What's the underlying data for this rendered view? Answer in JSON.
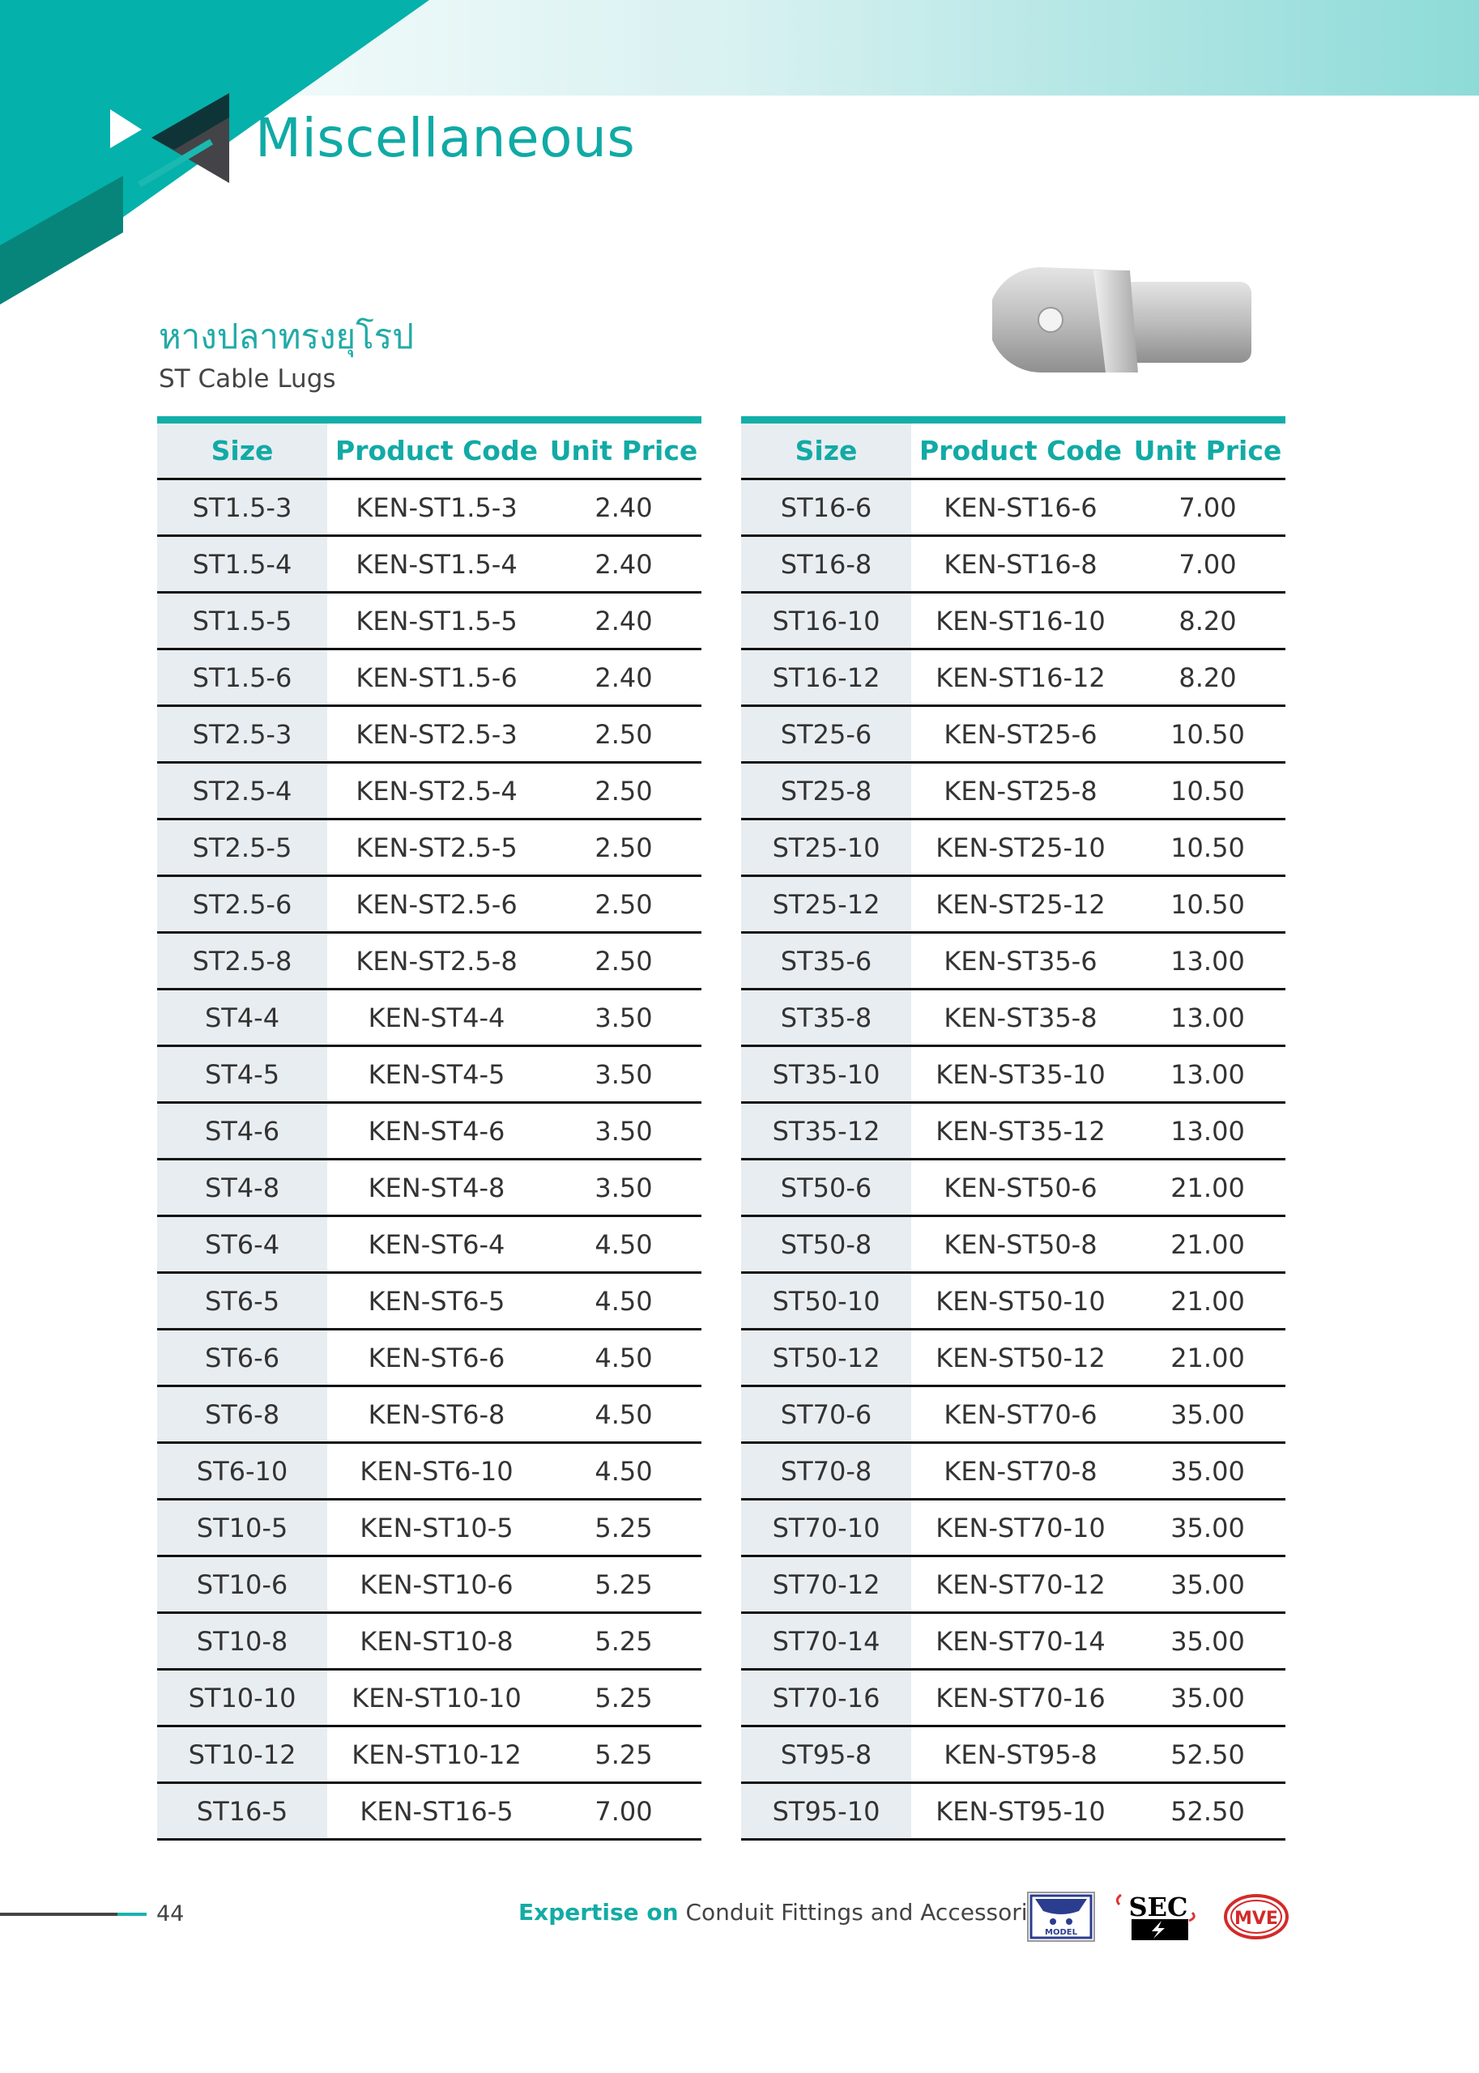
{
  "header": {
    "title": "Miscellaneous",
    "accent_color": "#12afa9"
  },
  "section": {
    "title_thai": "หางปลาทรงยุโรป",
    "title_en": "ST Cable Lugs"
  },
  "table_columns": [
    "Size",
    "Product Code",
    "Unit Price"
  ],
  "table_left": [
    [
      "ST1.5-3",
      "KEN-ST1.5-3",
      "2.40"
    ],
    [
      "ST1.5-4",
      "KEN-ST1.5-4",
      "2.40"
    ],
    [
      "ST1.5-5",
      "KEN-ST1.5-5",
      "2.40"
    ],
    [
      "ST1.5-6",
      "KEN-ST1.5-6",
      "2.40"
    ],
    [
      "ST2.5-3",
      "KEN-ST2.5-3",
      "2.50"
    ],
    [
      "ST2.5-4",
      "KEN-ST2.5-4",
      "2.50"
    ],
    [
      "ST2.5-5",
      "KEN-ST2.5-5",
      "2.50"
    ],
    [
      "ST2.5-6",
      "KEN-ST2.5-6",
      "2.50"
    ],
    [
      "ST2.5-8",
      "KEN-ST2.5-8",
      "2.50"
    ],
    [
      "ST4-4",
      "KEN-ST4-4",
      "3.50"
    ],
    [
      "ST4-5",
      "KEN-ST4-5",
      "3.50"
    ],
    [
      "ST4-6",
      "KEN-ST4-6",
      "3.50"
    ],
    [
      "ST4-8",
      "KEN-ST4-8",
      "3.50"
    ],
    [
      "ST6-4",
      "KEN-ST6-4",
      "4.50"
    ],
    [
      "ST6-5",
      "KEN-ST6-5",
      "4.50"
    ],
    [
      "ST6-6",
      "KEN-ST6-6",
      "4.50"
    ],
    [
      "ST6-8",
      "KEN-ST6-8",
      "4.50"
    ],
    [
      "ST6-10",
      "KEN-ST6-10",
      "4.50"
    ],
    [
      "ST10-5",
      "KEN-ST10-5",
      "5.25"
    ],
    [
      "ST10-6",
      "KEN-ST10-6",
      "5.25"
    ],
    [
      "ST10-8",
      "KEN-ST10-8",
      "5.25"
    ],
    [
      "ST10-10",
      "KEN-ST10-10",
      "5.25"
    ],
    [
      "ST10-12",
      "KEN-ST10-12",
      "5.25"
    ],
    [
      "ST16-5",
      "KEN-ST16-5",
      "7.00"
    ]
  ],
  "table_right": [
    [
      "ST16-6",
      "KEN-ST16-6",
      "7.00"
    ],
    [
      "ST16-8",
      "KEN-ST16-8",
      "7.00"
    ],
    [
      "ST16-10",
      "KEN-ST16-10",
      "8.20"
    ],
    [
      "ST16-12",
      "KEN-ST16-12",
      "8.20"
    ],
    [
      "ST25-6",
      "KEN-ST25-6",
      "10.50"
    ],
    [
      "ST25-8",
      "KEN-ST25-8",
      "10.50"
    ],
    [
      "ST25-10",
      "KEN-ST25-10",
      "10.50"
    ],
    [
      "ST25-12",
      "KEN-ST25-12",
      "10.50"
    ],
    [
      "ST35-6",
      "KEN-ST35-6",
      "13.00"
    ],
    [
      "ST35-8",
      "KEN-ST35-8",
      "13.00"
    ],
    [
      "ST35-10",
      "KEN-ST35-10",
      "13.00"
    ],
    [
      "ST35-12",
      "KEN-ST35-12",
      "13.00"
    ],
    [
      "ST50-6",
      "KEN-ST50-6",
      "21.00"
    ],
    [
      "ST50-8",
      "KEN-ST50-8",
      "21.00"
    ],
    [
      "ST50-10",
      "KEN-ST50-10",
      "21.00"
    ],
    [
      "ST50-12",
      "KEN-ST50-12",
      "21.00"
    ],
    [
      "ST70-6",
      "KEN-ST70-6",
      "35.00"
    ],
    [
      "ST70-8",
      "KEN-ST70-8",
      "35.00"
    ],
    [
      "ST70-10",
      "KEN-ST70-10",
      "35.00"
    ],
    [
      "ST70-12",
      "KEN-ST70-12",
      "35.00"
    ],
    [
      "ST70-14",
      "KEN-ST70-14",
      "35.00"
    ],
    [
      "ST70-16",
      "KEN-ST70-16",
      "35.00"
    ],
    [
      "ST95-8",
      "KEN-ST95-8",
      "52.50"
    ],
    [
      "ST95-10",
      "KEN-ST95-10",
      "52.50"
    ]
  ],
  "footer": {
    "page_number": "44",
    "tagline_bold": "Expertise on",
    "tagline_rest": " Conduit Fittings and Accessories",
    "logos": [
      "MODEL",
      "SEC",
      "MVE"
    ]
  }
}
